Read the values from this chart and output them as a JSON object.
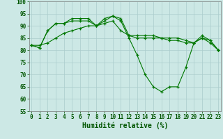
{
  "title": "",
  "xlabel": "Humidité relative (%)",
  "ylabel": "",
  "bg_color": "#cce8e5",
  "grid_color": "#aacccc",
  "line_color": "#007700",
  "xlim": [
    0,
    23
  ],
  "ylim": [
    55,
    100
  ],
  "yticks": [
    55,
    60,
    65,
    70,
    75,
    80,
    85,
    90,
    95,
    100
  ],
  "xticks": [
    0,
    1,
    2,
    3,
    4,
    5,
    6,
    7,
    8,
    9,
    10,
    11,
    12,
    13,
    14,
    15,
    16,
    17,
    18,
    19,
    20,
    21,
    22,
    23
  ],
  "series": [
    [
      82,
      81,
      88,
      91,
      91,
      93,
      93,
      93,
      90,
      93,
      94,
      93,
      86,
      86,
      86,
      86,
      85,
      85,
      85,
      84,
      83,
      86,
      84,
      80
    ],
    [
      82,
      81,
      88,
      91,
      91,
      92,
      92,
      92,
      90,
      92,
      94,
      92,
      85,
      78,
      70,
      65,
      63,
      65,
      65,
      73,
      83,
      85,
      83,
      80
    ],
    [
      82,
      82,
      83,
      85,
      87,
      88,
      89,
      90,
      90,
      91,
      92,
      88,
      86,
      85,
      85,
      85,
      85,
      84,
      84,
      83,
      83,
      85,
      84,
      80
    ]
  ],
  "xlabel_fontsize": 7,
  "tick_fontsize": 5.5
}
